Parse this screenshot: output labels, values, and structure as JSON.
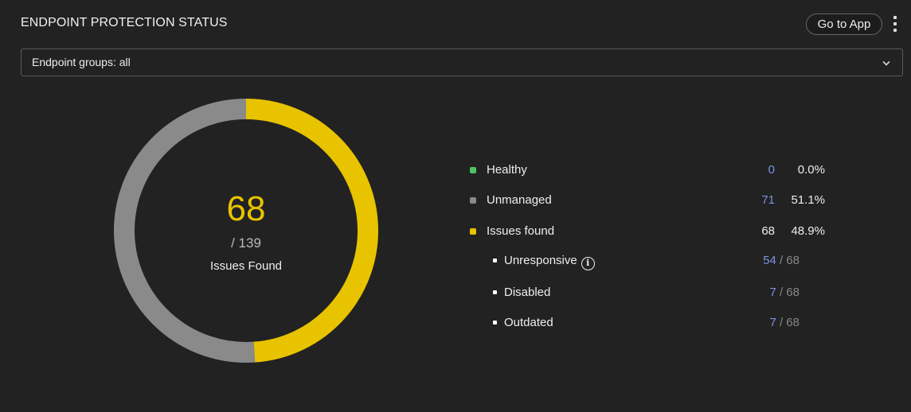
{
  "header": {
    "title": "ENDPOINT PROTECTION STATUS",
    "go_to_app": "Go to App"
  },
  "filter": {
    "value": "Endpoint groups: all"
  },
  "summary": {
    "value": "68",
    "total": "/ 139",
    "label": "Issues Found"
  },
  "colors": {
    "healthy": "#4fc267",
    "unmanaged": "#8a8a8a",
    "issues": "#e8c300",
    "count": "#7b93e0"
  },
  "chart_data": {
    "type": "pie",
    "variant": "donut",
    "categories": [
      "Healthy",
      "Unmanaged",
      "Issues found"
    ],
    "values": [
      0,
      71,
      68
    ]
  },
  "legend": [
    {
      "label": "Healthy",
      "count": "0",
      "pct": "0.0%"
    },
    {
      "label": "Unmanaged",
      "count": "71",
      "pct": "51.1%"
    },
    {
      "label": "Issues found",
      "count": "68",
      "pct": "48.9%"
    }
  ],
  "issues": [
    {
      "label": "Unresponsive",
      "count": "54",
      "of": "/ 68",
      "info": "i"
    },
    {
      "label": "Disabled",
      "count": "7",
      "of": "/ 68"
    },
    {
      "label": "Outdated",
      "count": "7",
      "of": "/ 68"
    }
  ]
}
